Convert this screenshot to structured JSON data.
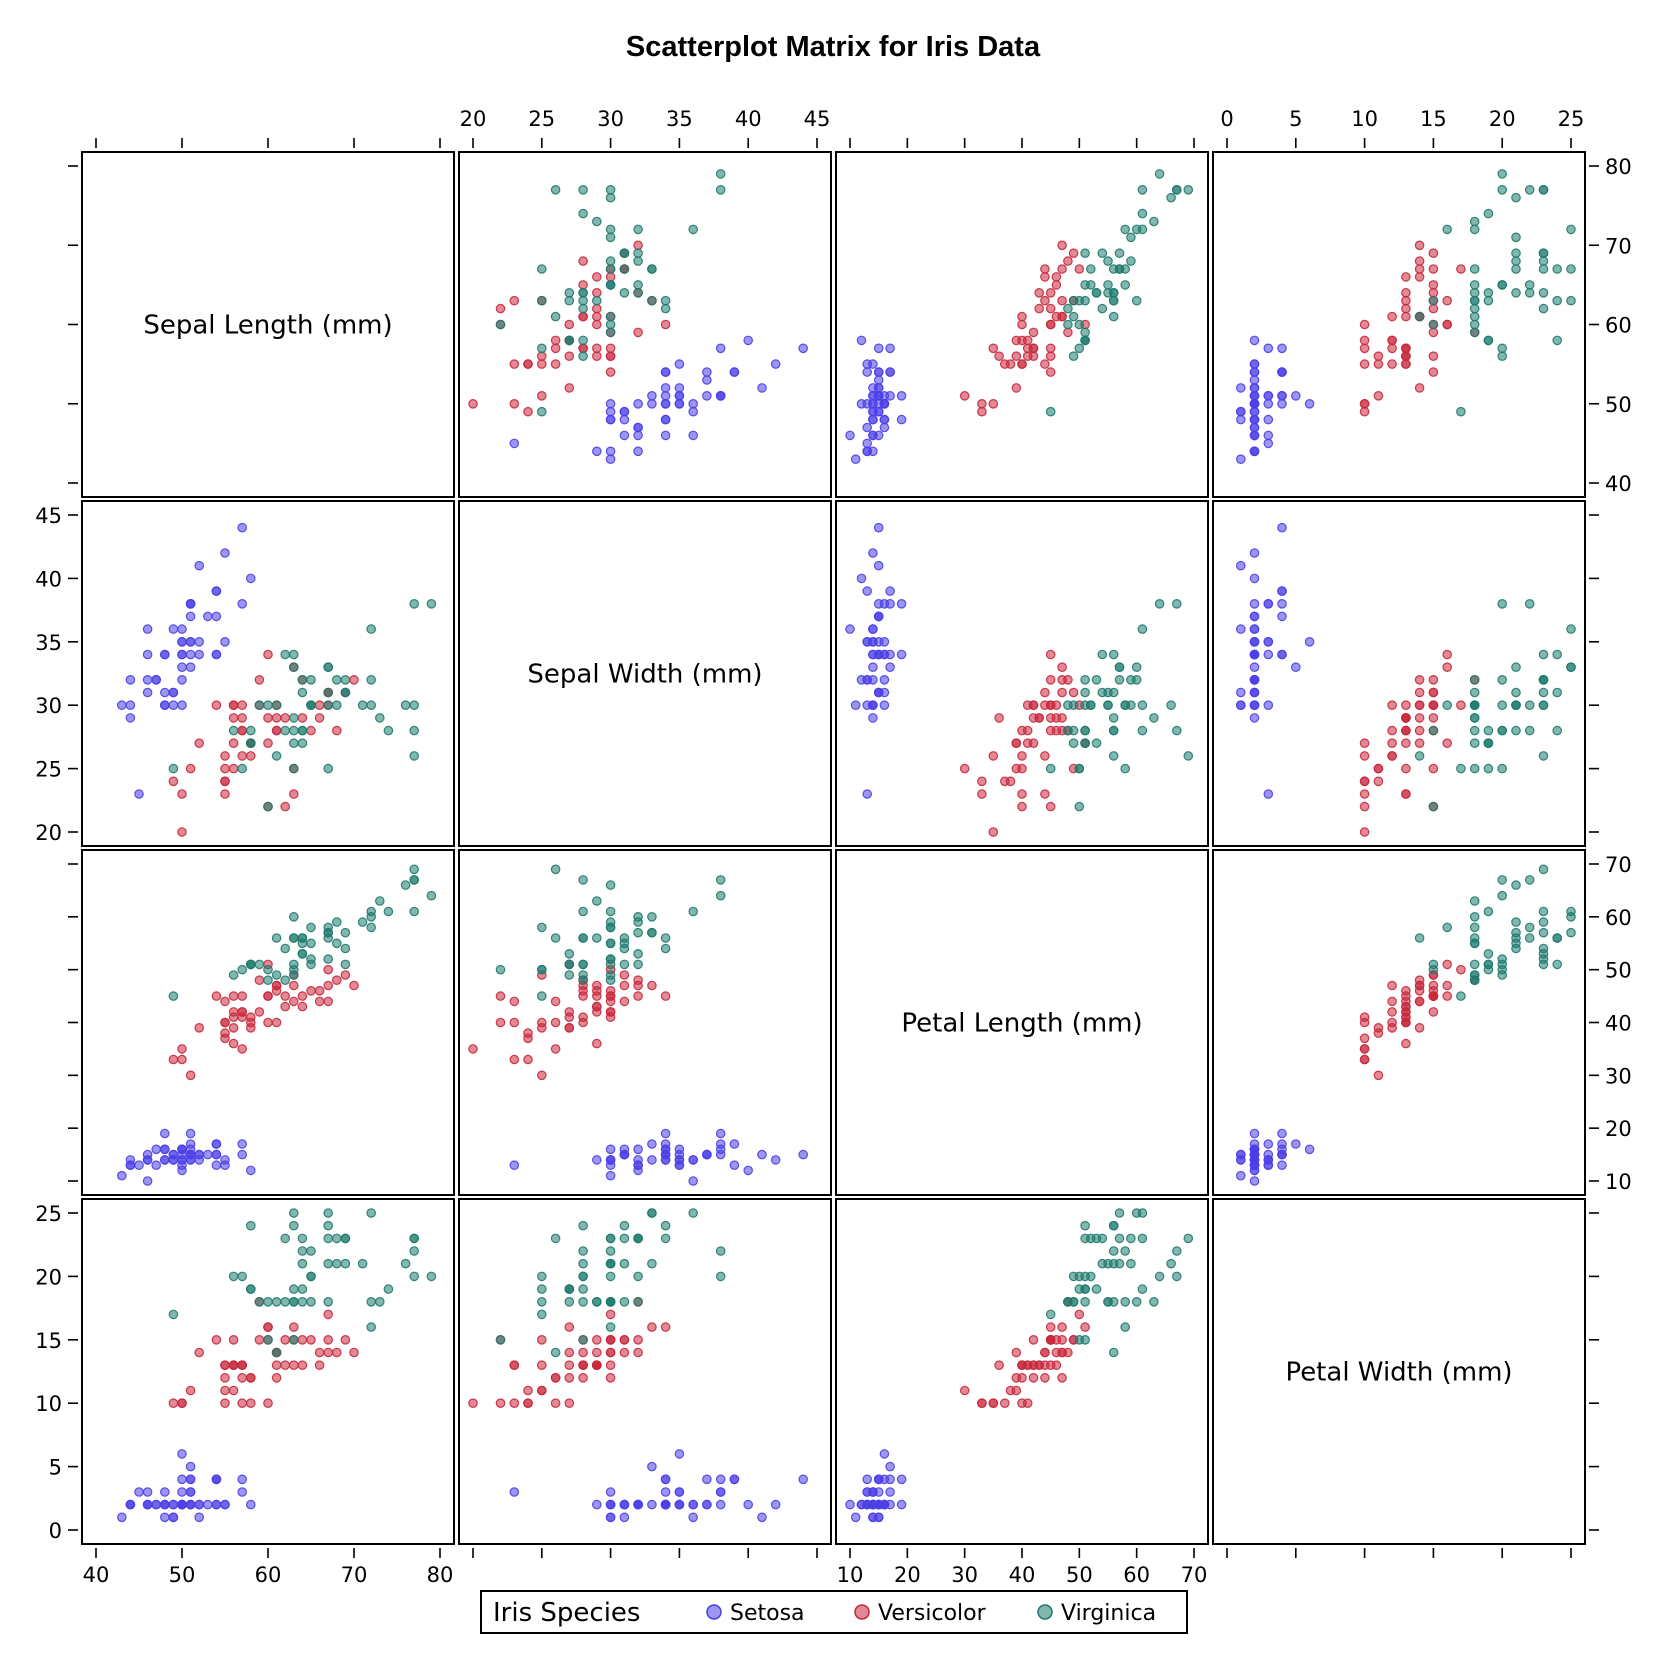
{
  "chart_data": {
    "type": "scatter-matrix",
    "title": "Scatterplot Matrix for Iris Data",
    "variables": [
      {
        "label": "Sepal Length (mm)",
        "range": [
          40,
          80
        ],
        "ticks": [
          40,
          50,
          60,
          70,
          80
        ]
      },
      {
        "label": "Sepal Width (mm)",
        "range": [
          20,
          45
        ],
        "ticks": [
          20,
          25,
          30,
          35,
          40,
          45
        ]
      },
      {
        "label": "Petal Length (mm)",
        "range": [
          10,
          70
        ],
        "ticks": [
          10,
          20,
          30,
          40,
          50,
          60,
          70
        ]
      },
      {
        "label": "Petal Width (mm)",
        "range": [
          0,
          25
        ],
        "ticks": [
          0,
          5,
          10,
          15,
          20,
          25
        ]
      }
    ],
    "legend": {
      "title": "Iris Species",
      "position": "bottom",
      "entries": [
        {
          "name": "Setosa",
          "color": "#4B3FE6"
        },
        {
          "name": "Versicolor",
          "color": "#C8283C"
        },
        {
          "name": "Virginica",
          "color": "#1E7A6E"
        }
      ]
    },
    "series": [
      {
        "name": "Setosa",
        "color": "#4B3FE6",
        "points": [
          [
            51,
            35,
            14,
            2
          ],
          [
            49,
            30,
            14,
            2
          ],
          [
            47,
            32,
            13,
            2
          ],
          [
            46,
            31,
            15,
            2
          ],
          [
            50,
            36,
            14,
            2
          ],
          [
            54,
            39,
            17,
            4
          ],
          [
            46,
            34,
            14,
            3
          ],
          [
            50,
            34,
            15,
            2
          ],
          [
            44,
            29,
            14,
            2
          ],
          [
            49,
            31,
            15,
            1
          ],
          [
            54,
            37,
            15,
            2
          ],
          [
            48,
            34,
            16,
            2
          ],
          [
            48,
            30,
            14,
            1
          ],
          [
            43,
            30,
            11,
            1
          ],
          [
            58,
            40,
            12,
            2
          ],
          [
            57,
            44,
            15,
            4
          ],
          [
            54,
            39,
            13,
            4
          ],
          [
            51,
            35,
            14,
            3
          ],
          [
            57,
            38,
            17,
            3
          ],
          [
            51,
            38,
            15,
            3
          ],
          [
            54,
            34,
            17,
            2
          ],
          [
            51,
            37,
            15,
            4
          ],
          [
            46,
            36,
            10,
            2
          ],
          [
            51,
            33,
            17,
            5
          ],
          [
            48,
            34,
            19,
            2
          ],
          [
            50,
            30,
            16,
            2
          ],
          [
            50,
            34,
            16,
            4
          ],
          [
            52,
            35,
            15,
            2
          ],
          [
            52,
            34,
            14,
            2
          ],
          [
            47,
            32,
            16,
            2
          ],
          [
            48,
            31,
            16,
            2
          ],
          [
            54,
            34,
            15,
            4
          ],
          [
            52,
            41,
            15,
            1
          ],
          [
            55,
            42,
            14,
            2
          ],
          [
            49,
            31,
            15,
            2
          ],
          [
            50,
            32,
            12,
            2
          ],
          [
            55,
            35,
            13,
            2
          ],
          [
            49,
            36,
            14,
            1
          ],
          [
            44,
            30,
            13,
            2
          ],
          [
            51,
            34,
            15,
            2
          ],
          [
            50,
            35,
            13,
            3
          ],
          [
            45,
            23,
            13,
            3
          ],
          [
            44,
            32,
            13,
            2
          ],
          [
            50,
            35,
            16,
            6
          ],
          [
            51,
            38,
            19,
            4
          ],
          [
            48,
            30,
            14,
            3
          ],
          [
            51,
            38,
            16,
            2
          ],
          [
            46,
            32,
            14,
            2
          ],
          [
            53,
            37,
            15,
            2
          ],
          [
            50,
            33,
            14,
            2
          ]
        ]
      },
      {
        "name": "Versicolor",
        "color": "#C8283C",
        "points": [
          [
            70,
            32,
            47,
            14
          ],
          [
            64,
            32,
            45,
            15
          ],
          [
            69,
            31,
            49,
            15
          ],
          [
            55,
            23,
            40,
            13
          ],
          [
            65,
            28,
            46,
            15
          ],
          [
            57,
            28,
            45,
            13
          ],
          [
            63,
            33,
            47,
            16
          ],
          [
            49,
            24,
            33,
            10
          ],
          [
            66,
            29,
            46,
            13
          ],
          [
            52,
            27,
            39,
            14
          ],
          [
            50,
            20,
            35,
            10
          ],
          [
            59,
            30,
            42,
            15
          ],
          [
            60,
            22,
            40,
            10
          ],
          [
            61,
            29,
            47,
            14
          ],
          [
            56,
            29,
            36,
            13
          ],
          [
            67,
            31,
            44,
            14
          ],
          [
            56,
            30,
            45,
            15
          ],
          [
            58,
            27,
            41,
            10
          ],
          [
            62,
            22,
            45,
            15
          ],
          [
            56,
            25,
            39,
            11
          ],
          [
            59,
            32,
            48,
            18
          ],
          [
            61,
            28,
            40,
            13
          ],
          [
            63,
            25,
            49,
            15
          ],
          [
            61,
            28,
            47,
            12
          ],
          [
            64,
            29,
            43,
            13
          ],
          [
            66,
            30,
            44,
            14
          ],
          [
            68,
            28,
            48,
            14
          ],
          [
            67,
            30,
            50,
            17
          ],
          [
            60,
            29,
            45,
            15
          ],
          [
            57,
            26,
            35,
            10
          ],
          [
            55,
            24,
            38,
            11
          ],
          [
            55,
            24,
            37,
            10
          ],
          [
            58,
            27,
            39,
            12
          ],
          [
            60,
            27,
            51,
            16
          ],
          [
            54,
            30,
            45,
            15
          ],
          [
            60,
            34,
            45,
            16
          ],
          [
            67,
            31,
            47,
            15
          ],
          [
            63,
            23,
            44,
            13
          ],
          [
            56,
            30,
            41,
            13
          ],
          [
            55,
            25,
            40,
            13
          ],
          [
            55,
            26,
            44,
            12
          ],
          [
            61,
            30,
            46,
            14
          ],
          [
            58,
            26,
            40,
            12
          ],
          [
            50,
            23,
            33,
            10
          ],
          [
            56,
            27,
            42,
            13
          ],
          [
            57,
            30,
            42,
            12
          ],
          [
            57,
            29,
            42,
            13
          ],
          [
            62,
            29,
            43,
            13
          ],
          [
            51,
            25,
            30,
            11
          ],
          [
            57,
            28,
            41,
            13
          ]
        ]
      },
      {
        "name": "Virginica",
        "color": "#1E7A6E",
        "points": [
          [
            63,
            33,
            60,
            25
          ],
          [
            58,
            27,
            51,
            19
          ],
          [
            71,
            30,
            59,
            21
          ],
          [
            63,
            29,
            56,
            18
          ],
          [
            65,
            30,
            58,
            22
          ],
          [
            76,
            30,
            66,
            21
          ],
          [
            49,
            25,
            45,
            17
          ],
          [
            73,
            29,
            63,
            18
          ],
          [
            67,
            25,
            58,
            18
          ],
          [
            72,
            36,
            61,
            25
          ],
          [
            65,
            32,
            51,
            20
          ],
          [
            64,
            27,
            53,
            19
          ],
          [
            68,
            30,
            55,
            21
          ],
          [
            57,
            25,
            50,
            20
          ],
          [
            58,
            28,
            51,
            24
          ],
          [
            64,
            32,
            53,
            23
          ],
          [
            65,
            30,
            55,
            18
          ],
          [
            77,
            38,
            67,
            22
          ],
          [
            77,
            26,
            69,
            23
          ],
          [
            60,
            22,
            50,
            15
          ],
          [
            69,
            32,
            57,
            23
          ],
          [
            56,
            28,
            49,
            20
          ],
          [
            77,
            28,
            67,
            20
          ],
          [
            63,
            27,
            49,
            18
          ],
          [
            67,
            33,
            57,
            21
          ],
          [
            72,
            32,
            60,
            18
          ],
          [
            62,
            28,
            48,
            18
          ],
          [
            61,
            30,
            49,
            18
          ],
          [
            64,
            28,
            56,
            21
          ],
          [
            72,
            30,
            58,
            16
          ],
          [
            74,
            28,
            61,
            19
          ],
          [
            79,
            38,
            64,
            20
          ],
          [
            64,
            28,
            56,
            22
          ],
          [
            63,
            28,
            51,
            15
          ],
          [
            61,
            26,
            56,
            14
          ],
          [
            77,
            30,
            61,
            23
          ],
          [
            63,
            34,
            56,
            24
          ],
          [
            64,
            31,
            55,
            18
          ],
          [
            60,
            30,
            48,
            18
          ],
          [
            69,
            31,
            54,
            21
          ],
          [
            67,
            31,
            56,
            24
          ],
          [
            69,
            31,
            51,
            23
          ],
          [
            58,
            27,
            51,
            19
          ],
          [
            68,
            32,
            59,
            23
          ],
          [
            67,
            33,
            57,
            25
          ],
          [
            67,
            30,
            52,
            23
          ],
          [
            63,
            25,
            50,
            19
          ],
          [
            65,
            30,
            52,
            20
          ],
          [
            62,
            34,
            54,
            23
          ],
          [
            59,
            30,
            51,
            18
          ]
        ]
      }
    ]
  }
}
